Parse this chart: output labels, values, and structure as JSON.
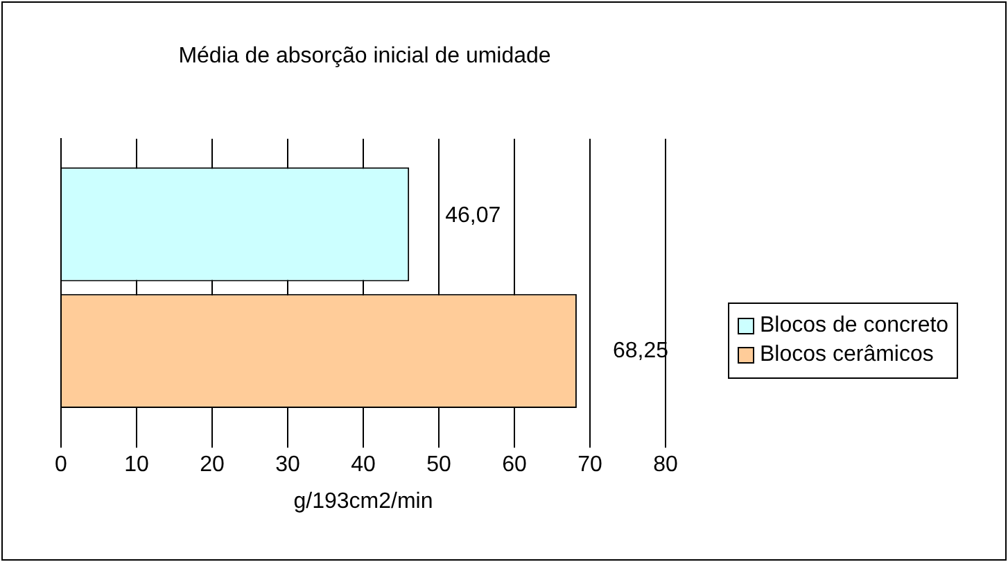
{
  "chart_data": {
    "type": "bar",
    "orientation": "horizontal",
    "title": "Média de absorção inicial de umidade",
    "xlabel": "g/193cm2/min",
    "categories": [
      null
    ],
    "series": [
      {
        "name": "Blocos de concreto",
        "color": "#ccffff",
        "values": [
          46.07
        ],
        "value_labels": [
          "46,07"
        ]
      },
      {
        "name": "Blocos cerâmicos",
        "color": "#ffcc99",
        "values": [
          68.25
        ],
        "value_labels": [
          "68,25"
        ]
      }
    ],
    "xlim": [
      0,
      80
    ],
    "xticks": [
      0,
      10,
      20,
      30,
      40,
      50,
      60,
      70,
      80
    ],
    "grid": "x",
    "legend": "right"
  }
}
